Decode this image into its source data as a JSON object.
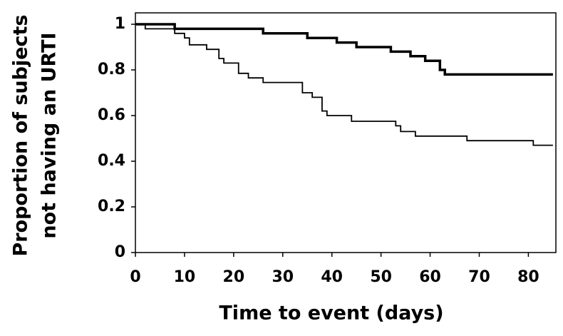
{
  "chart_data": {
    "type": "step",
    "xlabel": "Time to event (days)",
    "ylabel": [
      "Proportion of subjects",
      "not having an URTI"
    ],
    "xlim": [
      0,
      85.6
    ],
    "ylim": [
      0,
      1.05
    ],
    "xticks": [
      0,
      10,
      20,
      30,
      40,
      50,
      60,
      70,
      80
    ],
    "yticks": [
      0,
      0.2,
      0.4,
      0.6,
      0.8,
      1
    ],
    "series": [
      {
        "color": "#000000",
        "linewidth": 3.5,
        "x": [
          0,
          8,
          26,
          35,
          41,
          45,
          52,
          56,
          59,
          62,
          63,
          85
        ],
        "values": [
          1,
          0.98,
          0.96,
          0.94,
          0.92,
          0.9,
          0.88,
          0.86,
          0.84,
          0.8,
          0.78,
          0.78
        ]
      },
      {
        "color": "#000000",
        "linewidth": 1.8,
        "x": [
          0,
          2,
          8,
          10,
          11,
          14.5,
          17,
          18,
          21,
          23,
          26,
          34,
          36,
          38,
          39,
          44,
          53,
          54,
          57,
          67.5,
          81,
          85
        ],
        "values": [
          1,
          0.98,
          0.96,
          0.94,
          0.91,
          0.89,
          0.85,
          0.83,
          0.785,
          0.765,
          0.745,
          0.7,
          0.68,
          0.62,
          0.6,
          0.575,
          0.555,
          0.53,
          0.51,
          0.49,
          0.47,
          0.47
        ]
      }
    ]
  }
}
